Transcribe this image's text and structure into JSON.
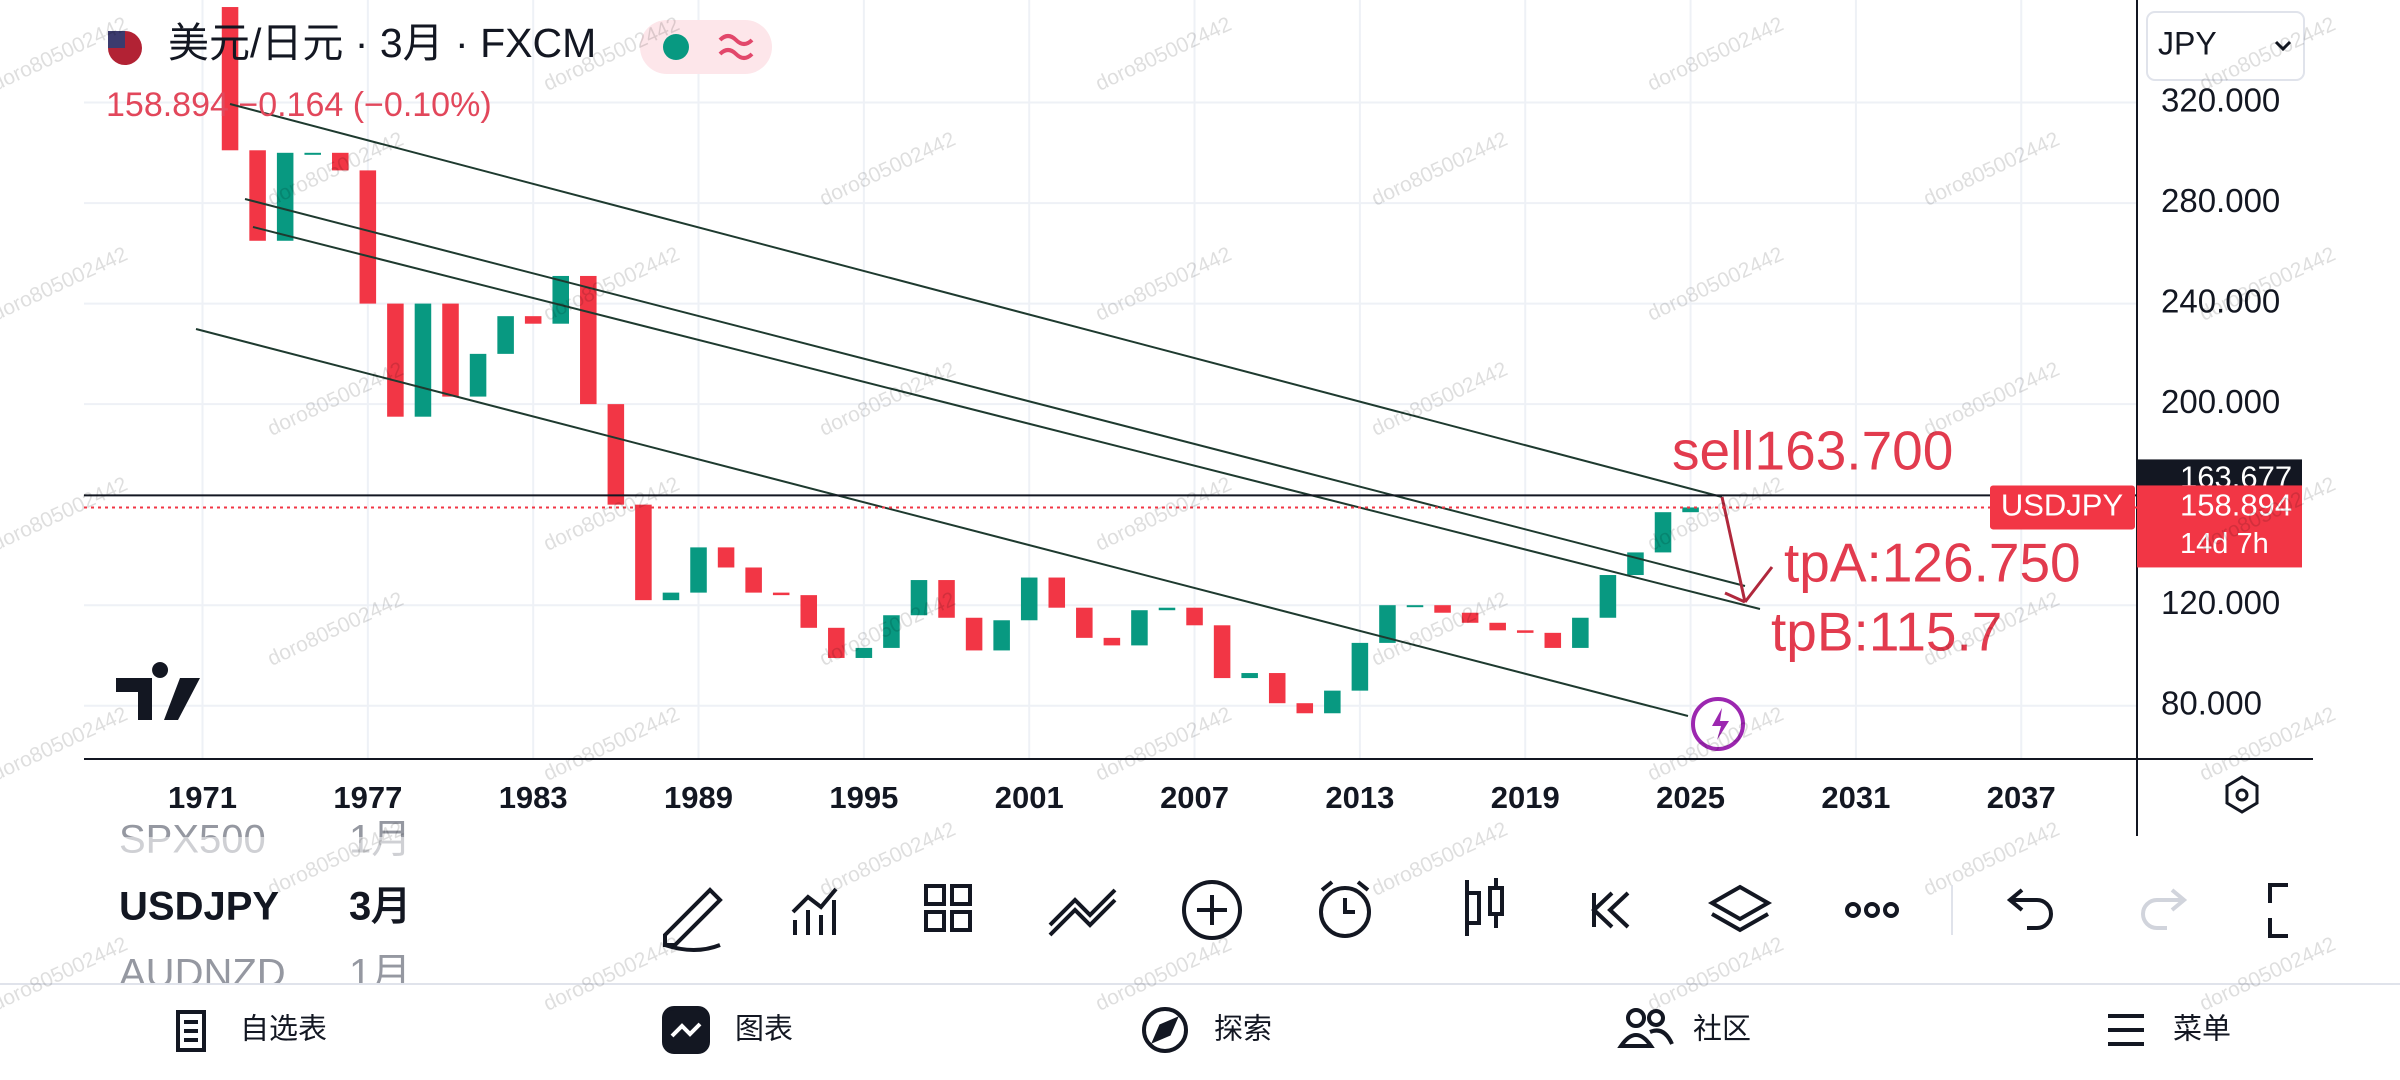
{
  "header": {
    "symbol_title": "美元/日元 · 3月 · FXCM",
    "quote": "158.894 −0.164 (−0.10%)",
    "currency": "JPY"
  },
  "chart_data": {
    "type": "candlestick",
    "x": [
      1971,
      1972,
      1973,
      1974,
      1975,
      1976,
      1977,
      1978,
      1979,
      1980,
      1981,
      1982,
      1983,
      1984,
      1985,
      1986,
      1987,
      1988,
      1989,
      1990,
      1991,
      1992,
      1993,
      1994,
      1995,
      1996,
      1997,
      1998,
      1999,
      2000,
      2001,
      2002,
      2003,
      2004,
      2005,
      2006,
      2007,
      2008,
      2009,
      2010,
      2011,
      2012,
      2013,
      2014,
      2015,
      2016,
      2017,
      2018,
      2019,
      2020,
      2021,
      2022,
      2023,
      2024,
      2025
    ],
    "values": [
      358,
      301,
      265,
      300,
      300,
      293,
      240,
      195,
      240,
      203,
      220,
      235,
      232,
      251,
      200,
      160,
      122,
      125,
      143,
      135,
      125,
      124,
      111,
      99,
      103,
      116,
      130,
      115,
      102,
      114,
      131,
      119,
      107,
      104,
      118,
      119,
      112,
      91,
      93,
      81,
      77,
      86,
      105,
      120,
      120,
      117,
      113,
      110,
      109,
      103,
      115,
      132,
      141,
      157,
      158.894
    ],
    "xlim": [
      1966.7,
      2041.2
    ],
    "xticks": [
      1971,
      1977,
      1983,
      1989,
      1995,
      2001,
      2007,
      2013,
      2019,
      2025,
      2031,
      2037
    ],
    "ylim": [
      58.8,
      360.8
    ],
    "yticks": [
      {
        "value": 80,
        "label": "80.000"
      },
      {
        "value": 120,
        "label": "120.000"
      },
      {
        "value": 200,
        "label": "200.000"
      },
      {
        "value": 240,
        "label": "240.000"
      },
      {
        "value": 280,
        "label": "280.000"
      },
      {
        "value": 320,
        "label": "320.000"
      }
    ],
    "grid": true,
    "colors": {
      "up": "#089981",
      "down": "#f23645"
    },
    "annotations": [
      "sell163.700",
      "tpA:126.750",
      "tpB:115.7"
    ],
    "crosshair": {
      "value": 163.677,
      "label": "163.677"
    },
    "last_price": {
      "symbol": "USDJPY",
      "value": 158.894,
      "label": "158.894",
      "countdown": "14d 7h"
    }
  },
  "watchlist": [
    {
      "symbol": "SPX500",
      "interval": "1月"
    },
    {
      "symbol": "USDJPY",
      "interval": "3月"
    },
    {
      "symbol": "AUDNZD",
      "interval": "1月"
    }
  ],
  "nav": [
    "自选表",
    "图表",
    "探索",
    "社区",
    "菜单"
  ],
  "watermark": "doro805002442"
}
